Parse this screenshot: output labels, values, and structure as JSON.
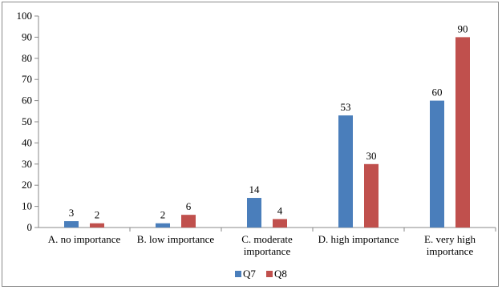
{
  "chart_data": {
    "type": "bar",
    "categories": [
      [
        "A. no importance"
      ],
      [
        "B. low importance"
      ],
      [
        "C. moderate",
        "importance"
      ],
      [
        "D. high importance"
      ],
      [
        "E. very high",
        "importance"
      ]
    ],
    "series": [
      {
        "name": "Q7",
        "color": "#4a7ebb",
        "values": [
          3,
          2,
          14,
          53,
          60
        ]
      },
      {
        "name": "Q8",
        "color": "#c0504d",
        "values": [
          2,
          6,
          4,
          30,
          90
        ]
      }
    ],
    "ylim": [
      0,
      100
    ],
    "yticks": [
      0,
      10,
      20,
      30,
      40,
      50,
      60,
      70,
      80,
      90,
      100
    ],
    "grid": false,
    "legend": "bottom"
  }
}
